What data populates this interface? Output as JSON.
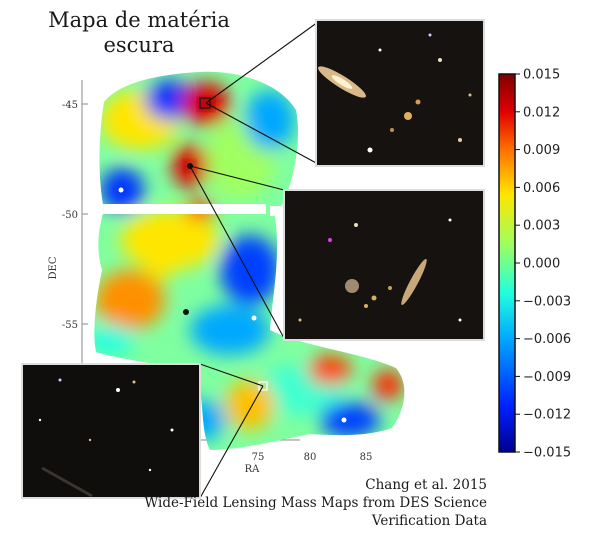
{
  "title": {
    "line1": "Mapa de matéria",
    "line2": "escura"
  },
  "credit": {
    "line1": "Chang et al. 2015",
    "line2": "Wide-Field Lensing Mass Maps from DES Science",
    "line3": "Verification Data"
  },
  "chart_data": {
    "type": "heatmap",
    "xlabel": "RA",
    "ylabel": "DEC",
    "x_ticks": [
      "75",
      "80",
      "85"
    ],
    "y_ticks": [
      "-45",
      "-50",
      "-55"
    ],
    "colorbar": {
      "min": -0.015,
      "max": 0.015,
      "ticks": [
        "0.015",
        "0.012",
        "0.009",
        "0.006",
        "0.003",
        "0.000",
        "−0.003",
        "−0.006",
        "−0.009",
        "−0.012",
        "−0.015"
      ],
      "colormap": [
        "#00008f",
        "#0020ff",
        "#00a8ff",
        "#20ffdf",
        "#9fff60",
        "#ffe600",
        "#ff7000",
        "#e00000",
        "#7f0000"
      ]
    },
    "highlighted_regions": [
      {
        "name": "peak-north",
        "value": 0.015
      },
      {
        "name": "peak-middle",
        "value": 0.012
      },
      {
        "name": "void-south",
        "value": -0.012
      }
    ],
    "insets": [
      "galaxy-cluster-north",
      "galaxy-cluster-middle",
      "void-field-south"
    ]
  }
}
